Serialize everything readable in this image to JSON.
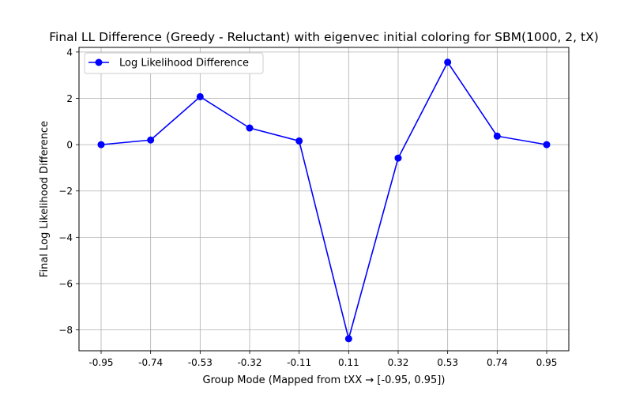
{
  "chart_data": {
    "type": "line",
    "title": "Final LL Difference (Greedy - Reluctant) with eigenvec initial coloring for SBM(1000, 2, tX)",
    "xlabel": "Group Mode (Mapped from tXX → [-0.95, 0.95])",
    "ylabel": "Final Log Likelihood Difference",
    "categories": [
      "-0.95",
      "-0.74",
      "-0.53",
      "-0.32",
      "-0.11",
      "0.11",
      "0.32",
      "0.53",
      "0.74",
      "0.95"
    ],
    "series": [
      {
        "name": "Log Likelihood Difference",
        "color": "#0000ff",
        "values": [
          0.0,
          0.2,
          2.07,
          0.72,
          0.16,
          -8.38,
          -0.58,
          3.56,
          0.37,
          0.0
        ]
      }
    ],
    "ylim": [
      -8.9,
      4.2
    ],
    "yticks": [
      4,
      2,
      0,
      -2,
      -4,
      -6,
      -8
    ],
    "ytick_labels": [
      "4",
      "2",
      "0",
      "−2",
      "−4",
      "−6",
      "−8"
    ],
    "grid": true,
    "legend_position": "upper-left"
  }
}
